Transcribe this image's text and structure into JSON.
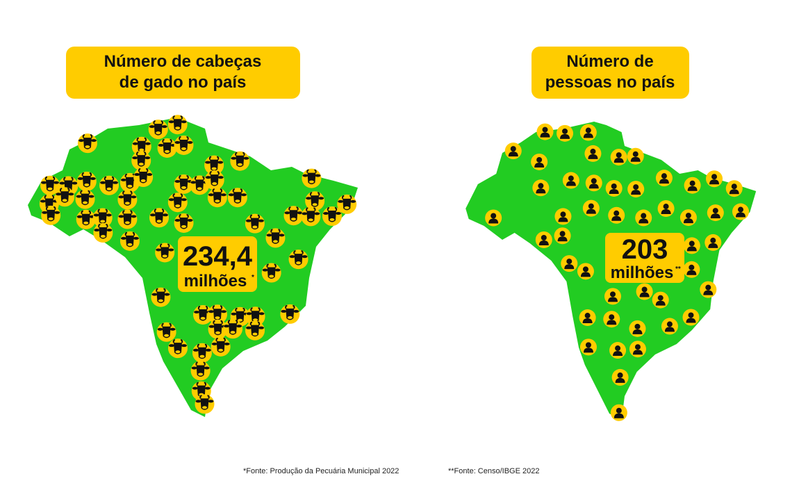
{
  "panels": [
    {
      "title": [
        "Número de cabeças",
        "de gado no país"
      ],
      "value": "234,4",
      "unit": "milhões",
      "note_mark": "*"
    },
    {
      "title": [
        "Número de",
        "pessoas no país"
      ],
      "value": "203",
      "unit": "milhões",
      "note_mark": "**"
    }
  ],
  "footnotes": [
    "*Fonte: Produção da Pecuária Municipal 2022",
    "**Fonte: Censo/IBGE 2022"
  ]
}
